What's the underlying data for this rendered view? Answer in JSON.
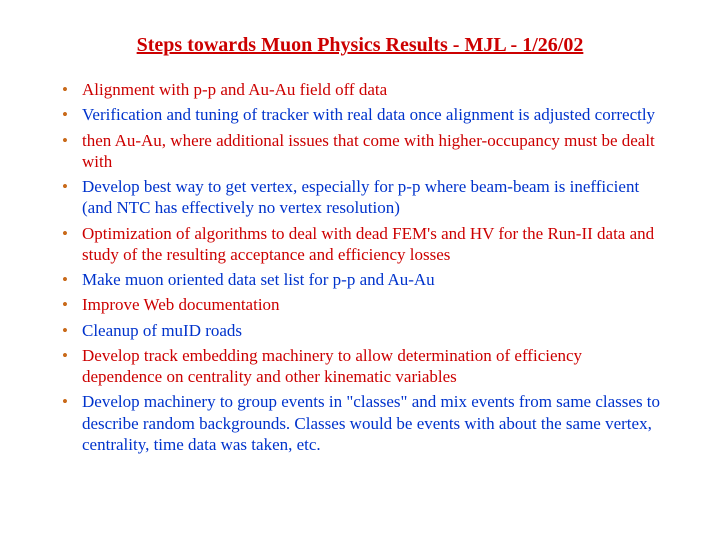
{
  "title": "Steps towards Muon Physics Results - MJL - 1/26/02",
  "colors": {
    "title": "#cc0000",
    "bullet_marker": "#c96a1a",
    "red_text": "#cc0000",
    "blue_text": "#0033cc",
    "background": "#ffffff"
  },
  "typography": {
    "family": "Times New Roman",
    "title_fontsize_pt": 15,
    "body_fontsize_pt": 13
  },
  "items": [
    {
      "text": "Alignment with p-p and Au-Au field off data",
      "color": "red"
    },
    {
      "text": "Verification and tuning of tracker with real data once alignment is adjusted correctly",
      "color": "blue"
    },
    {
      "text": "then Au-Au, where additional issues that come with higher-occupancy must be dealt with",
      "color": "red"
    },
    {
      "text": "Develop best way to get vertex, especially for p-p where beam-beam is inefficient (and NTC has effectively no vertex resolution)",
      "color": "blue"
    },
    {
      "text": "Optimization of algorithms to deal with dead FEM's and HV for the Run-II data and study of the resulting acceptance and efficiency losses",
      "color": "red"
    },
    {
      "text": "Make muon oriented data set list for p-p and Au-Au",
      "color": "blue"
    },
    {
      "text": "Improve Web documentation",
      "color": "red"
    },
    {
      "text": "Cleanup of muID roads",
      "color": "blue"
    },
    {
      "text": "Develop track embedding machinery to allow determination of efficiency dependence on centrality and other kinematic variables",
      "color": "red"
    },
    {
      "text": "Develop machinery to group events in \"classes\" and mix events from same classes to describe random backgrounds. Classes would be events with about the same vertex, centrality, time data was taken, etc.",
      "color": "blue"
    }
  ]
}
